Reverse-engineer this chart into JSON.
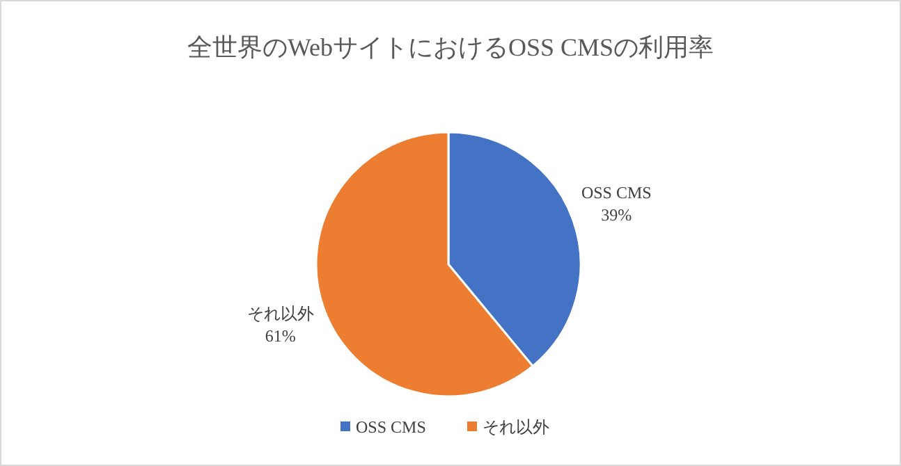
{
  "chart_data": {
    "type": "pie",
    "title": "全世界のWebサイトにおけるOSS  CMSの利用率",
    "categories": [
      "OSS CMS",
      "それ以外"
    ],
    "values": [
      39,
      61
    ],
    "colors": [
      "#4472c4",
      "#ed7d31"
    ],
    "value_labels": [
      "39%",
      "61%"
    ],
    "legend": "bottom"
  }
}
